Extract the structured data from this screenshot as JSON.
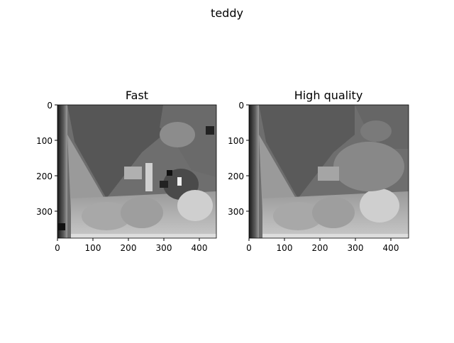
{
  "figure": {
    "suptitle": "teddy"
  },
  "panels": [
    {
      "title": "Fast",
      "xticks": [
        "0",
        "100",
        "200",
        "300",
        "400"
      ],
      "yticks": [
        "0",
        "100",
        "200",
        "300"
      ]
    },
    {
      "title": "High quality",
      "xticks": [
        "0",
        "100",
        "200",
        "300",
        "400"
      ],
      "yticks": [
        "0",
        "100",
        "200",
        "300"
      ]
    }
  ],
  "image_extent": {
    "x": [
      0,
      450
    ],
    "y": [
      0,
      375
    ]
  },
  "colormap": "gray"
}
